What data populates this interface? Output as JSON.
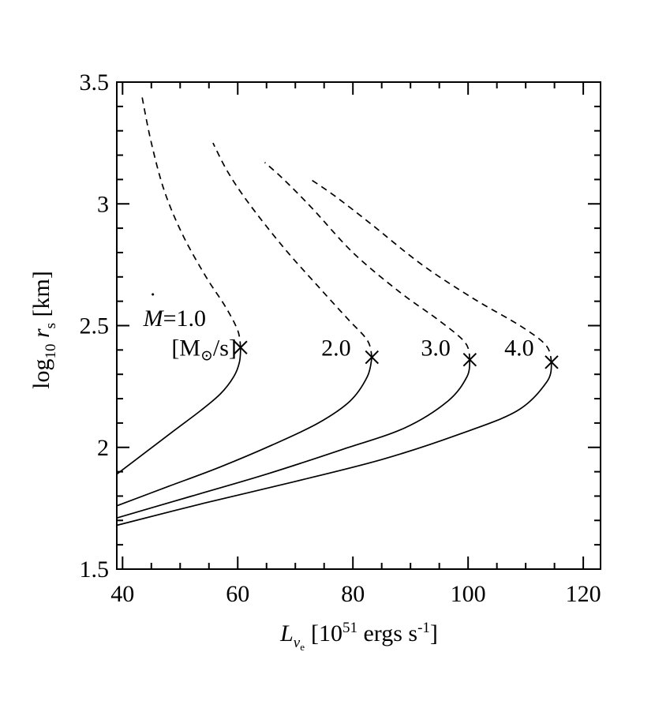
{
  "chart_data": {
    "type": "line",
    "title": "",
    "xlabel": {
      "symbol": "L",
      "sub": "ν",
      "subsub": "e",
      "units": "[10",
      "exp": "51",
      "units2": " ergs s",
      "exp2": "-1",
      "close": "]"
    },
    "ylabel": {
      "prefix": "log",
      "sub": "10",
      "symbol": " r",
      "sub2": "s",
      "units": " [km]"
    },
    "xlim": [
      39,
      123
    ],
    "ylim": [
      1.5,
      3.5
    ],
    "x_ticks": [
      40,
      60,
      80,
      100,
      120
    ],
    "y_ticks": [
      1.5,
      2,
      2.5,
      3,
      3.5
    ],
    "x_tick_labels": [
      "40",
      "60",
      "80",
      "100",
      "120"
    ],
    "y_tick_labels": [
      "1.5",
      "2",
      "2.5",
      "3",
      "3.5"
    ],
    "grid": false,
    "legend": "none",
    "series": [
      {
        "name": "1.0",
        "critical": {
          "x": 60.5,
          "y": 2.41
        },
        "solid": [
          [
            39.0,
            1.89
          ],
          [
            44.0,
            1.98
          ],
          [
            49.0,
            2.07
          ],
          [
            53.5,
            2.15
          ],
          [
            57.0,
            2.22
          ],
          [
            59.3,
            2.29
          ],
          [
            60.3,
            2.35
          ],
          [
            60.5,
            2.41
          ]
        ],
        "dashed": [
          [
            60.5,
            2.41
          ],
          [
            60.0,
            2.48
          ],
          [
            57.8,
            2.58
          ],
          [
            54.5,
            2.7
          ],
          [
            50.5,
            2.87
          ],
          [
            47.3,
            3.05
          ],
          [
            45.0,
            3.25
          ],
          [
            43.3,
            3.45
          ]
        ]
      },
      {
        "name": "2.0",
        "critical": {
          "x": 83.3,
          "y": 2.37
        },
        "solid": [
          [
            39.0,
            1.76
          ],
          [
            48.0,
            1.84
          ],
          [
            57.0,
            1.92
          ],
          [
            66.0,
            2.01
          ],
          [
            74.0,
            2.1
          ],
          [
            79.5,
            2.19
          ],
          [
            82.5,
            2.29
          ],
          [
            83.3,
            2.37
          ]
        ],
        "dashed": [
          [
            83.3,
            2.37
          ],
          [
            82.5,
            2.44
          ],
          [
            79.0,
            2.53
          ],
          [
            74.0,
            2.66
          ],
          [
            68.0,
            2.82
          ],
          [
            62.0,
            3.0
          ],
          [
            58.3,
            3.13
          ],
          [
            55.7,
            3.25
          ]
        ]
      },
      {
        "name": "3.0",
        "critical": {
          "x": 100.3,
          "y": 2.36
        },
        "solid": [
          [
            39.0,
            1.71
          ],
          [
            52.0,
            1.8
          ],
          [
            65.0,
            1.89
          ],
          [
            78.0,
            1.99
          ],
          [
            89.0,
            2.08
          ],
          [
            96.5,
            2.19
          ],
          [
            99.8,
            2.29
          ],
          [
            100.3,
            2.36
          ]
        ],
        "dashed": [
          [
            100.3,
            2.36
          ],
          [
            99.5,
            2.43
          ],
          [
            95.0,
            2.52
          ],
          [
            88.0,
            2.64
          ],
          [
            80.0,
            2.8
          ],
          [
            73.0,
            2.98
          ],
          [
            68.0,
            3.1
          ],
          [
            64.7,
            3.17
          ]
        ]
      },
      {
        "name": "4.0",
        "critical": {
          "x": 114.5,
          "y": 2.35
        },
        "solid": [
          [
            39.0,
            1.68
          ],
          [
            54.0,
            1.77
          ],
          [
            70.0,
            1.86
          ],
          [
            85.0,
            1.95
          ],
          [
            98.0,
            2.05
          ],
          [
            108.5,
            2.15
          ],
          [
            113.7,
            2.27
          ],
          [
            114.5,
            2.35
          ]
        ],
        "dashed": [
          [
            114.5,
            2.35
          ],
          [
            113.5,
            2.42
          ],
          [
            109.0,
            2.5
          ],
          [
            101.0,
            2.61
          ],
          [
            92.0,
            2.75
          ],
          [
            83.0,
            2.92
          ],
          [
            77.0,
            3.03
          ],
          [
            72.7,
            3.1
          ]
        ]
      }
    ],
    "annotations": [
      {
        "id": "mdot",
        "symbol": "M",
        "text": "=1.0",
        "x": 43.6,
        "y": 2.53
      },
      {
        "id": "mdot-units",
        "open": "[M",
        "sun": "⊙",
        "text": "/s]",
        "x": 48.5,
        "y": 2.41
      },
      {
        "id": "label-2",
        "text": "2.0",
        "x": 74.5,
        "y": 2.41
      },
      {
        "id": "label-3",
        "text": "3.0",
        "x": 91.8,
        "y": 2.41
      },
      {
        "id": "label-4",
        "text": "4.0",
        "x": 106.3,
        "y": 2.41
      }
    ]
  }
}
